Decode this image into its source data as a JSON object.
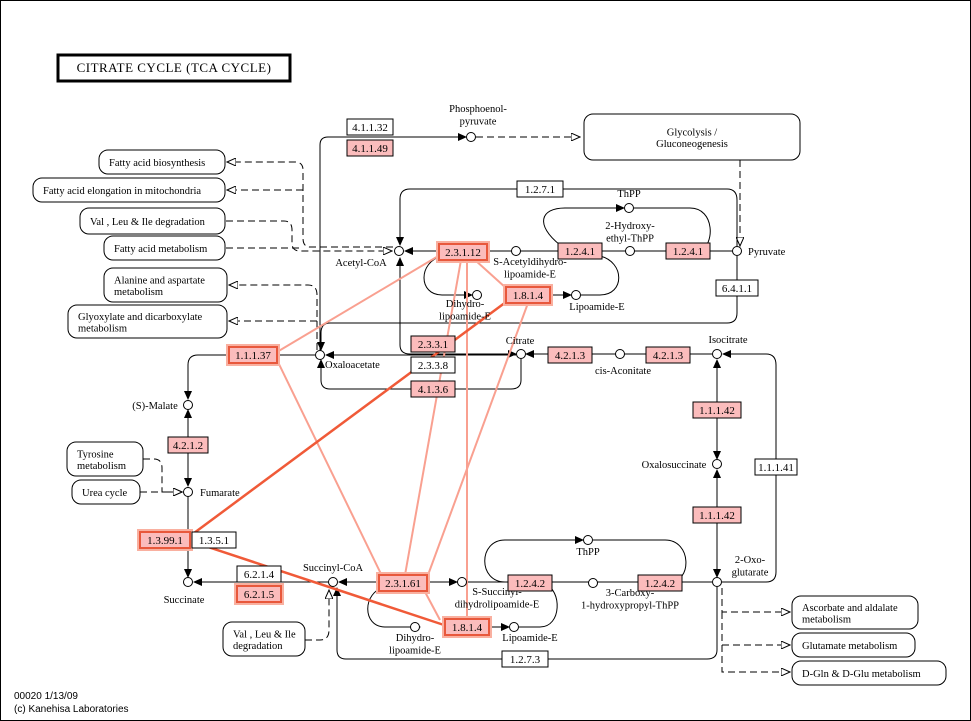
{
  "title": "CITRATE CYCLE (TCA CYCLE)",
  "colors": {
    "enzyme_present": "#fbbcbc",
    "highlight_border": "#e8583c",
    "highlight_line_light": "#f9a090",
    "highlight_line_strong": "#f05a38"
  },
  "enzymes": [
    {
      "label": "4.1.1.32",
      "present": false,
      "highlighted": false
    },
    {
      "label": "4.1.1.49",
      "present": true,
      "highlighted": false
    },
    {
      "label": "1.2.7.1",
      "present": false,
      "highlighted": false
    },
    {
      "label": "2.3.1.12",
      "present": true,
      "highlighted": true
    },
    {
      "label": "1.2.4.1",
      "present": true,
      "highlighted": false
    },
    {
      "label": "1.2.4.1",
      "present": true,
      "highlighted": false
    },
    {
      "label": "1.8.1.4",
      "present": true,
      "highlighted": true
    },
    {
      "label": "6.4.1.1",
      "present": false,
      "highlighted": false
    },
    {
      "label": "1.1.1.37",
      "present": true,
      "highlighted": true
    },
    {
      "label": "2.3.3.1",
      "present": true,
      "highlighted": false
    },
    {
      "label": "2.3.3.8",
      "present": false,
      "highlighted": false
    },
    {
      "label": "4.1.3.6",
      "present": true,
      "highlighted": false
    },
    {
      "label": "4.2.1.3",
      "present": true,
      "highlighted": false
    },
    {
      "label": "4.2.1.3",
      "present": true,
      "highlighted": false
    },
    {
      "label": "1.1.1.42",
      "present": true,
      "highlighted": false
    },
    {
      "label": "1.1.1.42",
      "present": true,
      "highlighted": false
    },
    {
      "label": "1.1.1.41",
      "present": false,
      "highlighted": false
    },
    {
      "label": "4.2.1.2",
      "present": true,
      "highlighted": false
    },
    {
      "label": "1.3.99.1",
      "present": true,
      "highlighted": true
    },
    {
      "label": "1.3.5.1",
      "present": false,
      "highlighted": false
    },
    {
      "label": "6.2.1.4",
      "present": false,
      "highlighted": false
    },
    {
      "label": "6.2.1.5",
      "present": true,
      "highlighted": true
    },
    {
      "label": "2.3.1.61",
      "present": true,
      "highlighted": true
    },
    {
      "label": "1.2.4.2",
      "present": true,
      "highlighted": false
    },
    {
      "label": "1.2.4.2",
      "present": true,
      "highlighted": false
    },
    {
      "label": "1.8.1.4",
      "present": true,
      "highlighted": true
    },
    {
      "label": "1.2.7.3",
      "present": false,
      "highlighted": false
    }
  ],
  "compounds": [
    {
      "lines": [
        "Phosphoenol-",
        "pyruvate"
      ]
    },
    {
      "lines": [
        "Acetyl-CoA"
      ]
    },
    {
      "lines": [
        "S-Acetyldihydro-",
        "lipoamide-E"
      ]
    },
    {
      "lines": [
        "2-Hydroxy-",
        "ethyl-ThPP"
      ]
    },
    {
      "lines": [
        "ThPP"
      ]
    },
    {
      "lines": [
        "Pyruvate"
      ]
    },
    {
      "lines": [
        "Dihydro-",
        "lipoamide-E"
      ]
    },
    {
      "lines": [
        "Lipoamide-E"
      ]
    },
    {
      "lines": [
        "Oxaloacetate"
      ]
    },
    {
      "lines": [
        "Citrate"
      ]
    },
    {
      "lines": [
        "cis-Aconitate"
      ]
    },
    {
      "lines": [
        "Isocitrate"
      ]
    },
    {
      "lines": [
        "(S)-Malate"
      ]
    },
    {
      "lines": [
        "Fumarate"
      ]
    },
    {
      "lines": [
        "Oxalosuccinate"
      ]
    },
    {
      "lines": [
        "2-Oxo-",
        "glutarate"
      ]
    },
    {
      "lines": [
        "ThPP"
      ]
    },
    {
      "lines": [
        "3-Carboxy-",
        "1-hydroxypropyl-ThPP"
      ]
    },
    {
      "lines": [
        "S-Succinyl-",
        "dihydrolipoamide-E"
      ]
    },
    {
      "lines": [
        "Succinyl-CoA"
      ]
    },
    {
      "lines": [
        "Succinate"
      ]
    },
    {
      "lines": [
        "Dihydro-",
        "lipoamide-E"
      ]
    },
    {
      "lines": [
        "Lipoamide-E"
      ]
    }
  ],
  "maps": [
    {
      "lines": [
        "Glycolysis /",
        "Gluconeogenesis"
      ]
    },
    {
      "lines": [
        "Fatty acid biosynthesis"
      ]
    },
    {
      "lines": [
        "Fatty acid elongation in mitochondria"
      ]
    },
    {
      "lines": [
        "Val , Leu & Ile degradation"
      ]
    },
    {
      "lines": [
        "Fatty acid metabolism"
      ]
    },
    {
      "lines": [
        "Alanine and aspartate",
        "metabolism"
      ]
    },
    {
      "lines": [
        "Glyoxylate and dicarboxylate",
        "metabolism"
      ]
    },
    {
      "lines": [
        "Tyrosine",
        "metabolism"
      ]
    },
    {
      "lines": [
        "Urea cycle"
      ]
    },
    {
      "lines": [
        "Val , Leu & Ile",
        "degradation"
      ]
    },
    {
      "lines": [
        "Ascorbate and aldalate",
        "metabolism"
      ]
    },
    {
      "lines": [
        "Glutamate metabolism"
      ]
    },
    {
      "lines": [
        "D-Gln & D-Glu metabolism"
      ]
    }
  ],
  "footer": {
    "id_date": "00020   1/13/09",
    "copyright": "(c) Kanehisa Laboratories"
  }
}
